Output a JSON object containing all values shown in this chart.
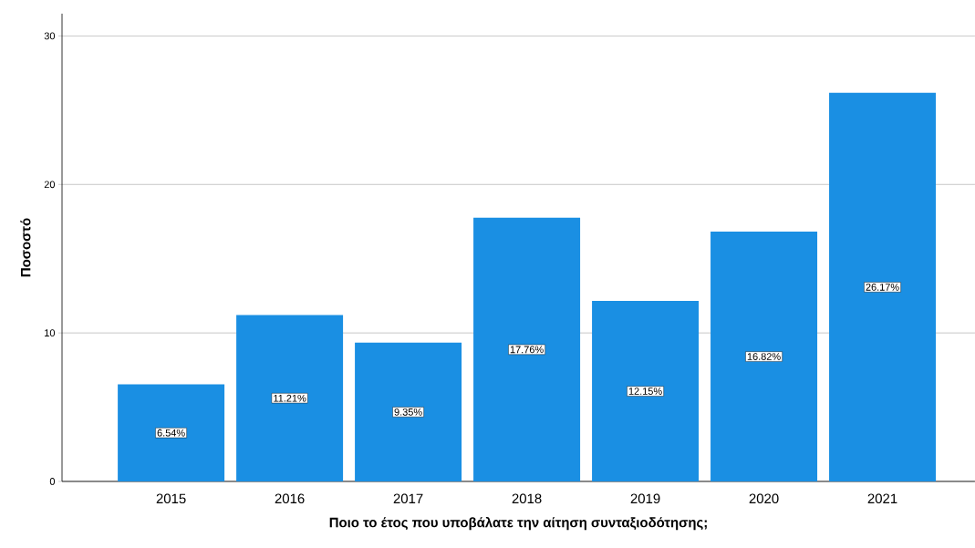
{
  "chart_data": {
    "type": "bar",
    "xlabel": "Ποιο το έτος που υποβάλατε την αίτηση συνταξιοδότησης;",
    "ylabel": "Ποσοστό",
    "categories": [
      "2015",
      "2016",
      "2017",
      "2018",
      "2019",
      "2020",
      "2021"
    ],
    "values": [
      6.54,
      11.21,
      9.35,
      17.76,
      12.15,
      16.82,
      26.17
    ],
    "value_labels": [
      "6.54%",
      "11.21%",
      "9.35%",
      "17.76%",
      "12.15%",
      "16.82%",
      "26.17%"
    ],
    "color": "#1a8fe3",
    "ylim": [
      0,
      31.5
    ],
    "yticks": [
      0,
      10,
      20,
      30
    ],
    "grid": "y"
  }
}
